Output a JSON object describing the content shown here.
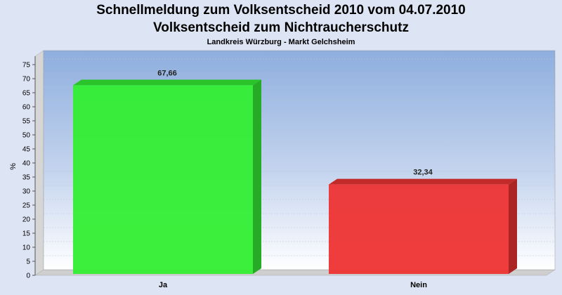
{
  "chart_data": {
    "type": "bar",
    "title": "Schnellmeldung zum Volksentscheid 2010 vom 04.07.2010",
    "subtitle": "Volksentscheid zum Nichtraucherschutz",
    "subsubtitle": "Landkreis Würzburg - Markt Gelchsheim",
    "ylabel": "%",
    "xlabel": "",
    "ylim": [
      0,
      80
    ],
    "yticks": [
      0,
      5,
      10,
      15,
      20,
      25,
      30,
      35,
      40,
      45,
      50,
      55,
      60,
      65,
      70,
      75
    ],
    "categories": [
      "Ja",
      "Nein"
    ],
    "values": [
      67.66,
      32.34
    ],
    "value_labels": [
      "67,66",
      "32,34"
    ],
    "colors": [
      "#33ee33",
      "#ee3333"
    ],
    "grid": true,
    "legend": "none"
  }
}
